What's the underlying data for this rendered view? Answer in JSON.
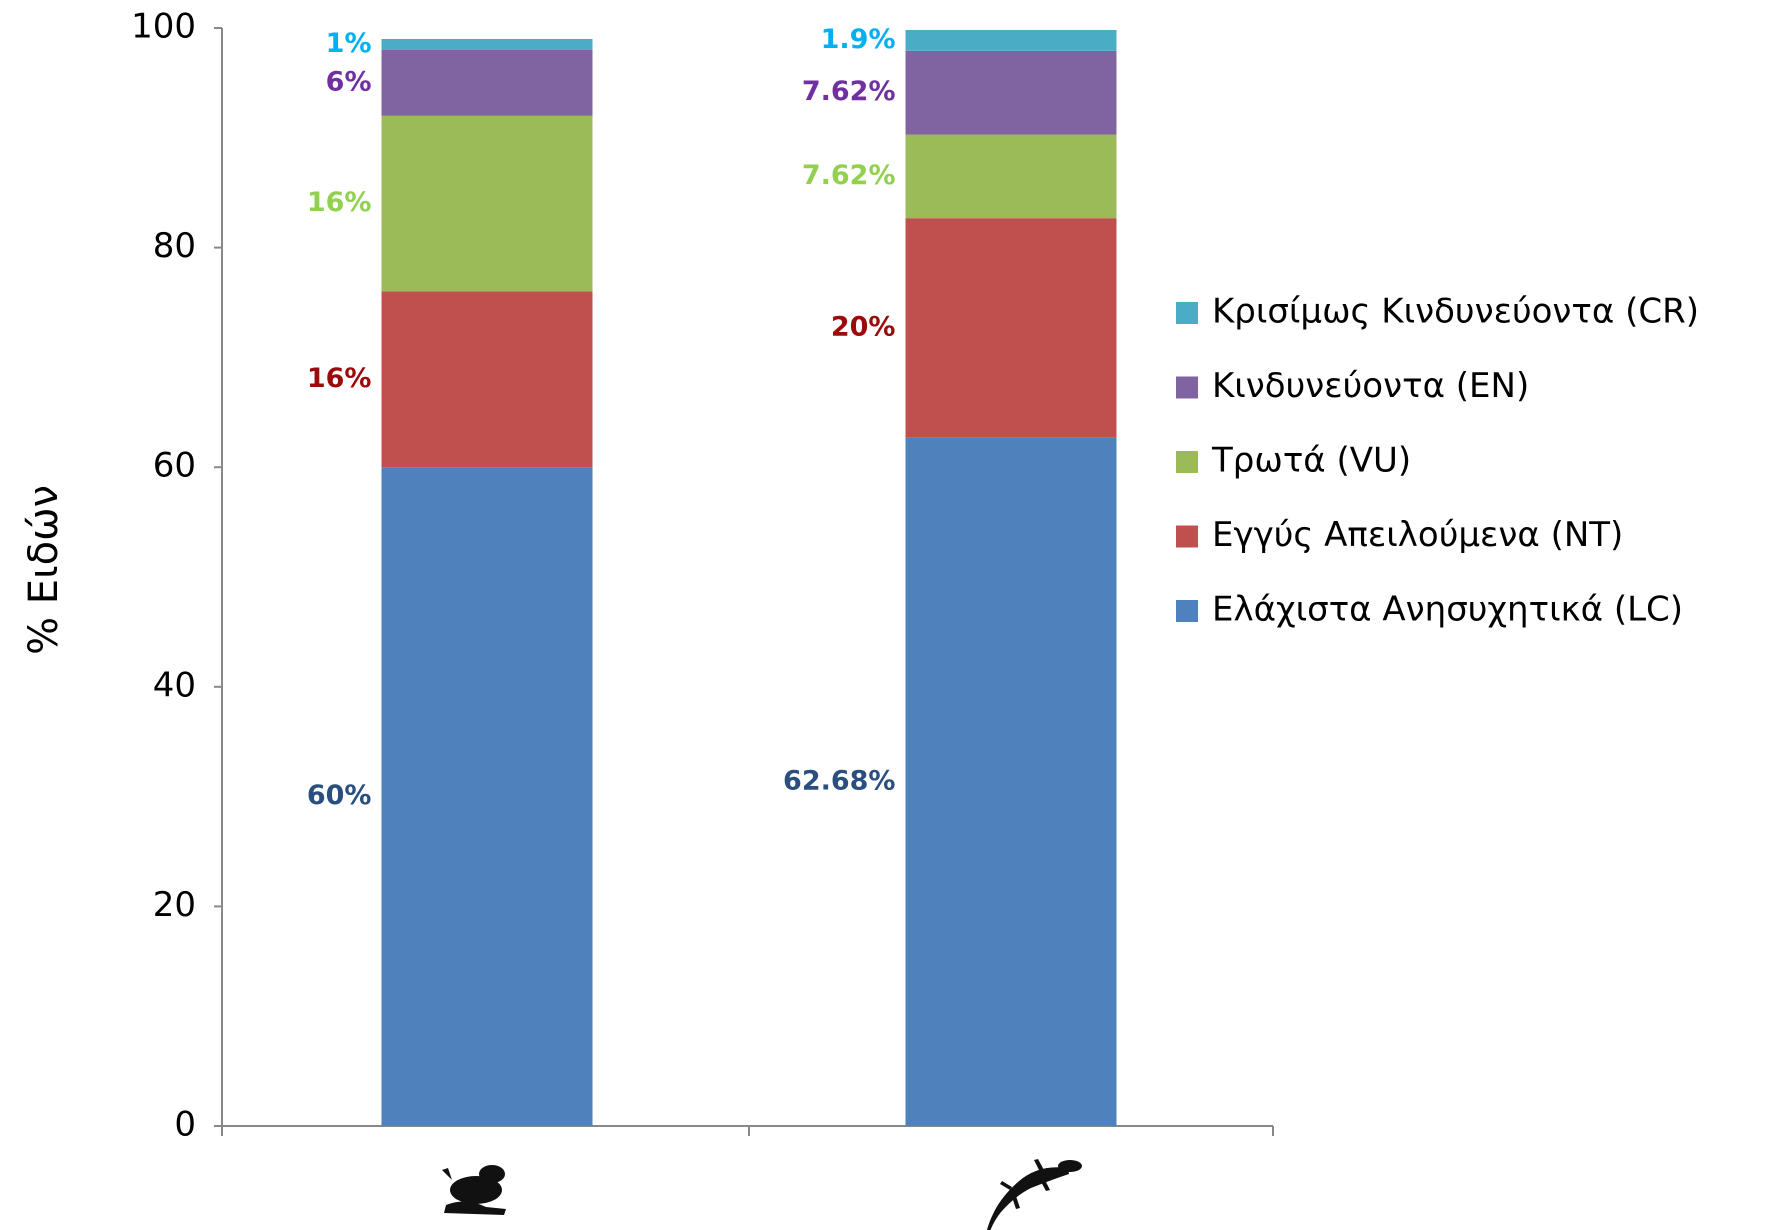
{
  "chart_data": {
    "type": "stacked_bar",
    "y_label": "% Ειδών",
    "categories": [
      null,
      null
    ],
    "series": [
      {
        "name": "Ελάχιστα Ανησυχητικά (LC)",
        "color": "#4f81bd",
        "label_color": "#2a4f7f",
        "values": [
          60,
          62.68
        ],
        "value_labels": [
          "60%",
          "62.68%"
        ]
      },
      {
        "name": "Εγγύς Απειλούμενα (NT)",
        "color": "#c0504d",
        "label_color": "#9b0b0b",
        "values": [
          16,
          20
        ],
        "value_labels": [
          "16%",
          "20%"
        ]
      },
      {
        "name": "Τρωτά (VU)",
        "color": "#9bbb59",
        "label_color": "#92d050",
        "values": [
          16,
          7.62
        ],
        "value_labels": [
          "16%",
          "7.62%"
        ]
      },
      {
        "name": "Κινδυνεύοντα (EN)",
        "color": "#8064a2",
        "label_color": "#7030a0",
        "values": [
          6,
          7.62
        ],
        "value_labels": [
          "6%",
          "7.62%"
        ]
      },
      {
        "name": "Κρισίμως Κινδυνεύοντα (CR)",
        "color": "#4bacc6",
        "label_color": "#00b0f0",
        "values": [
          1,
          1.9
        ],
        "value_labels": [
          "1%",
          "1.9%"
        ]
      }
    ],
    "ylim": [
      0,
      100
    ],
    "yticks": [
      0,
      20,
      40,
      60,
      80,
      100
    ],
    "grid": false,
    "legend": "right"
  }
}
